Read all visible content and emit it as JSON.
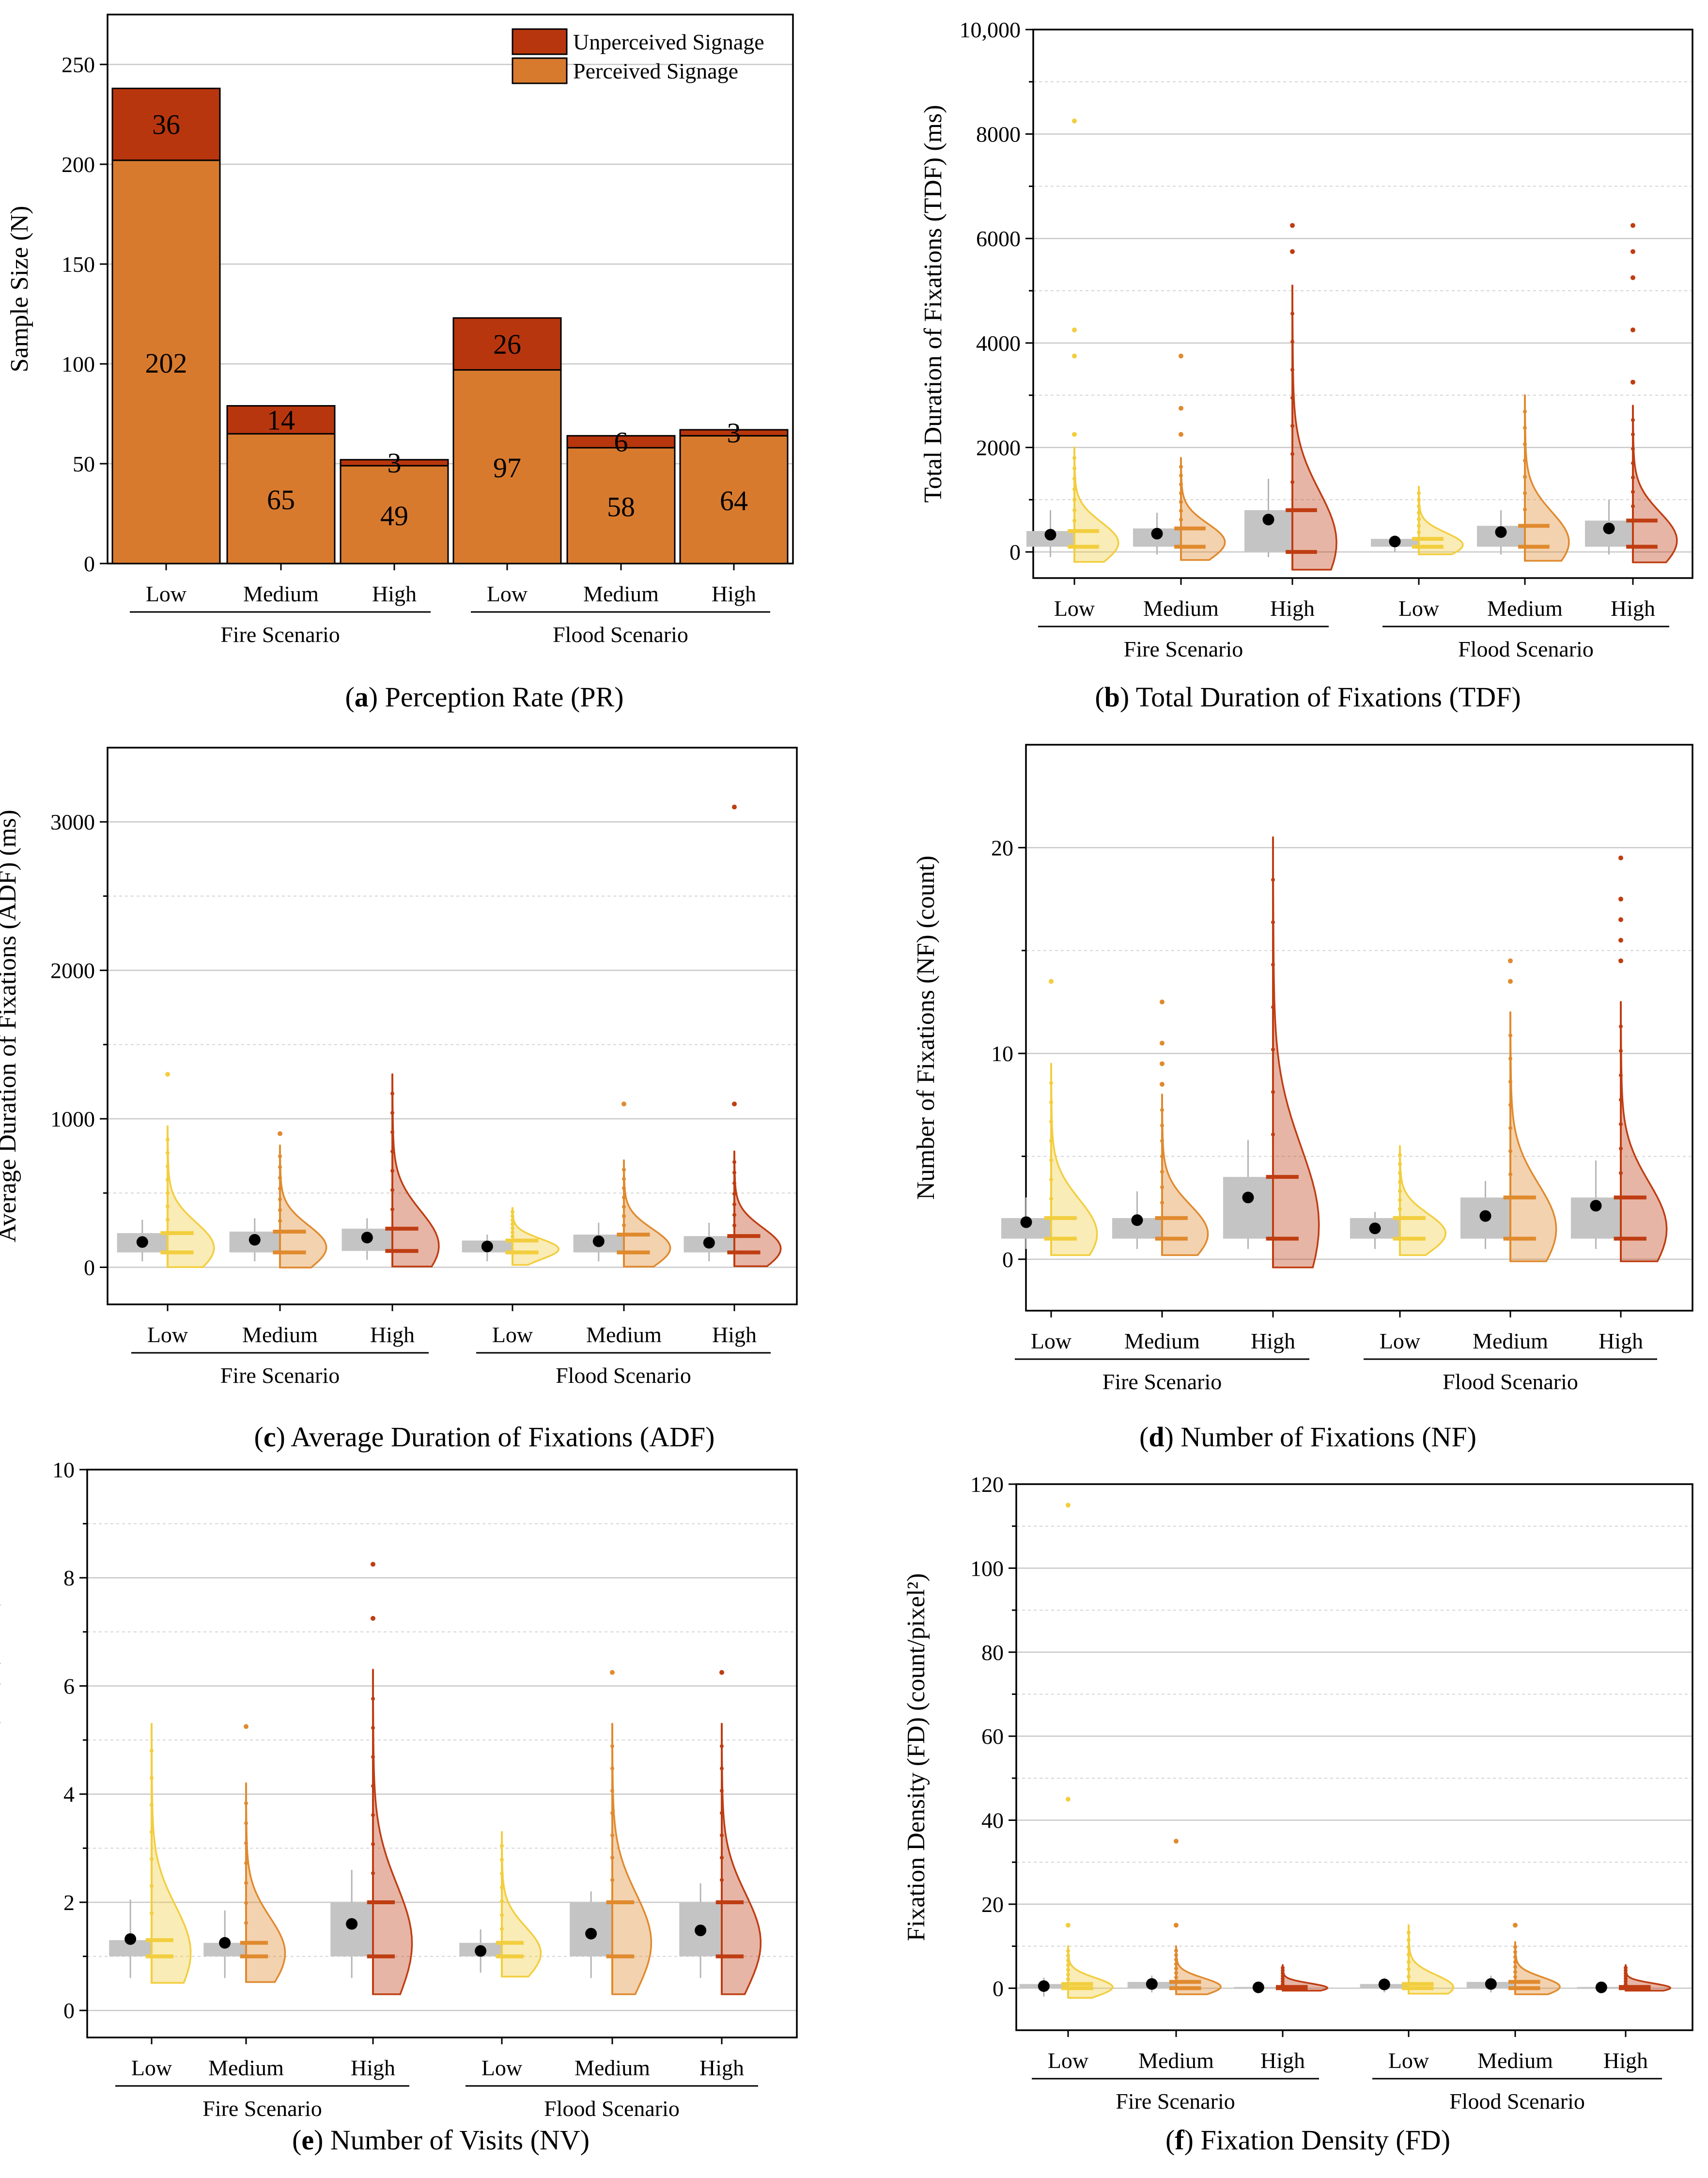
{
  "colors": {
    "perceived": "#D87A2E",
    "unperceived": "#B8360E",
    "low": "#F2CE3E",
    "medium": "#E08A2E",
    "high": "#BF3D12",
    "box": "#C4C4C4",
    "grid": "#C8C8C8"
  },
  "chart_data": [
    {
      "id": "a",
      "type": "bar",
      "caption_letter": "a",
      "caption_text": " Perception Rate (PR)",
      "ylabel": "Sample Size (N)",
      "ylim": [
        0,
        275
      ],
      "yticks": [
        0,
        50,
        100,
        150,
        200,
        250
      ],
      "ytick_labels": [
        "0",
        "50",
        "100",
        "150",
        "200",
        "250"
      ],
      "legend": [
        "Unperceived Signage",
        "Perceived Signage"
      ],
      "categories": [
        "Low",
        "Medium",
        "High",
        "Low",
        "Medium",
        "High"
      ],
      "groups": [
        "Fire Scenario",
        "Flood Scenario"
      ],
      "series": [
        {
          "name": "Perceived Signage",
          "values": [
            202,
            65,
            49,
            97,
            58,
            64
          ]
        },
        {
          "name": "Unperceived Signage",
          "values": [
            36,
            14,
            3,
            26,
            6,
            3
          ]
        }
      ]
    },
    {
      "id": "b",
      "type": "raincloud",
      "caption_letter": "b",
      "caption_text": " Total Duration of Fixations (TDF)",
      "ylabel": "Total Duration of Fixations (TDF) (ms)",
      "ylim": [
        -500,
        10000
      ],
      "yticks": [
        0,
        2000,
        4000,
        6000,
        8000,
        10000
      ],
      "ytick_labels": [
        "0",
        "2000",
        "4000",
        "6000",
        "8000",
        "10,000"
      ],
      "minor_step": 1000,
      "categories": [
        "Low",
        "Medium",
        "High",
        "Low",
        "Medium",
        "High"
      ],
      "groups": [
        "Fire Scenario",
        "Flood Scenario"
      ],
      "series": [
        {
          "q1": 100,
          "q3": 400,
          "whisker_low": -100,
          "whisker_high": 800,
          "mean": 330,
          "violin_max": 2000,
          "outliers": [
            2250,
            3750,
            4250,
            8250
          ]
        },
        {
          "q1": 100,
          "q3": 450,
          "whisker_low": -50,
          "whisker_high": 750,
          "mean": 350,
          "violin_max": 1800,
          "outliers": [
            2250,
            2750,
            3750
          ]
        },
        {
          "q1": 0,
          "q3": 800,
          "whisker_low": -100,
          "whisker_high": 1400,
          "mean": 620,
          "violin_max": 5100,
          "outliers": [
            5750,
            6250
          ]
        },
        {
          "q1": 100,
          "q3": 250,
          "whisker_low": 0,
          "whisker_high": 300,
          "mean": 200,
          "violin_max": 1250,
          "outliers": []
        },
        {
          "q1": 100,
          "q3": 500,
          "whisker_low": -50,
          "whisker_high": 800,
          "mean": 380,
          "violin_max": 3000,
          "outliers": []
        },
        {
          "q1": 100,
          "q3": 600,
          "whisker_low": -50,
          "whisker_high": 1000,
          "mean": 450,
          "violin_max": 2800,
          "outliers": [
            3250,
            4250,
            5250,
            5750,
            6250
          ]
        }
      ]
    },
    {
      "id": "c",
      "type": "raincloud",
      "caption_letter": "c",
      "caption_text": " Average Duration of Fixations (ADF)",
      "ylabel": "Average Duration of Fixations (ADF) (ms)",
      "ylim": [
        -250,
        3500
      ],
      "yticks": [
        0,
        1000,
        2000,
        3000
      ],
      "ytick_labels": [
        "0",
        "1000",
        "2000",
        "3000"
      ],
      "minor_step": 500,
      "categories": [
        "Low",
        "Medium",
        "High",
        "Low",
        "Medium",
        "High"
      ],
      "groups": [
        "Fire Scenario",
        "Flood Scenario"
      ],
      "series": [
        {
          "q1": 100,
          "q3": 230,
          "whisker_low": 40,
          "whisker_high": 320,
          "mean": 170,
          "violin_max": 950,
          "outliers": [
            1300
          ]
        },
        {
          "q1": 100,
          "q3": 240,
          "whisker_low": 40,
          "whisker_high": 330,
          "mean": 185,
          "violin_max": 820,
          "outliers": [
            900
          ]
        },
        {
          "q1": 110,
          "q3": 260,
          "whisker_low": 50,
          "whisker_high": 330,
          "mean": 200,
          "violin_max": 1300,
          "outliers": []
        },
        {
          "q1": 100,
          "q3": 180,
          "whisker_low": 40,
          "whisker_high": 220,
          "mean": 140,
          "violin_max": 400,
          "outliers": []
        },
        {
          "q1": 100,
          "q3": 220,
          "whisker_low": 40,
          "whisker_high": 300,
          "mean": 175,
          "violin_max": 720,
          "outliers": [
            1100
          ]
        },
        {
          "q1": 100,
          "q3": 210,
          "whisker_low": 40,
          "whisker_high": 300,
          "mean": 165,
          "violin_max": 780,
          "outliers": [
            1100,
            3100
          ]
        }
      ]
    },
    {
      "id": "d",
      "type": "raincloud",
      "caption_letter": "d",
      "caption_text": " Number of Fixations (NF)",
      "ylabel": "Number of Fixations (NF) (count)",
      "ylim": [
        -2.5,
        25
      ],
      "yticks": [
        0,
        10,
        20
      ],
      "ytick_labels": [
        "0",
        "10",
        "20"
      ],
      "minor_step": 5,
      "categories": [
        "Low",
        "Medium",
        "High",
        "Low",
        "Medium",
        "High"
      ],
      "groups": [
        "Fire Scenario",
        "Flood Scenario"
      ],
      "series": [
        {
          "q1": 1,
          "q3": 2,
          "whisker_low": 0.5,
          "whisker_high": 3,
          "mean": 1.8,
          "violin_max": 9.5,
          "outliers": [
            13.5
          ]
        },
        {
          "q1": 1,
          "q3": 2,
          "whisker_low": 0.5,
          "whisker_high": 3.3,
          "mean": 1.9,
          "violin_max": 8,
          "outliers": [
            8.5,
            9.5,
            10.5,
            12.5
          ]
        },
        {
          "q1": 1,
          "q3": 4,
          "whisker_low": 0.5,
          "whisker_high": 5.8,
          "mean": 3.0,
          "violin_max": 20.5,
          "outliers": []
        },
        {
          "q1": 1,
          "q3": 2,
          "whisker_low": 0.5,
          "whisker_high": 2.3,
          "mean": 1.5,
          "violin_max": 5.5,
          "outliers": []
        },
        {
          "q1": 1,
          "q3": 3,
          "whisker_low": 0.5,
          "whisker_high": 3.8,
          "mean": 2.1,
          "violin_max": 12,
          "outliers": [
            13.5,
            14.5
          ]
        },
        {
          "q1": 1,
          "q3": 3,
          "whisker_low": 0.5,
          "whisker_high": 4.8,
          "mean": 2.6,
          "violin_max": 12.5,
          "outliers": [
            14.5,
            15.5,
            16.5,
            17.5,
            19.5
          ]
        }
      ]
    },
    {
      "id": "e",
      "type": "raincloud",
      "caption_letter": "e",
      "caption_text": " Number of Visits (NV)",
      "ylabel": "Number of Visits (NV) (count)",
      "ylim": [
        -0.5,
        10
      ],
      "yticks": [
        0,
        2,
        4,
        6,
        8,
        10
      ],
      "ytick_labels": [
        "0",
        "2",
        "4",
        "6",
        "8",
        "10"
      ],
      "minor_step": 1,
      "categories": [
        "Low",
        "Medium",
        "High",
        "Low",
        "Medium",
        "High"
      ],
      "groups": [
        "Fire Scenario",
        "Flood Scenario"
      ],
      "series": [
        {
          "q1": 1,
          "q3": 1.3,
          "whisker_low": 0.6,
          "whisker_high": 2.05,
          "mean": 1.32,
          "violin_max": 5.3,
          "outliers": []
        },
        {
          "q1": 1,
          "q3": 1.25,
          "whisker_low": 0.6,
          "whisker_high": 1.85,
          "mean": 1.25,
          "violin_max": 4.2,
          "outliers": [
            5.25
          ]
        },
        {
          "q1": 1,
          "q3": 2,
          "whisker_low": 0.6,
          "whisker_high": 2.6,
          "mean": 1.6,
          "violin_max": 6.3,
          "outliers": [
            7.25,
            8.25
          ]
        },
        {
          "q1": 1,
          "q3": 1.25,
          "whisker_low": 0.7,
          "whisker_high": 1.5,
          "mean": 1.1,
          "violin_max": 3.3,
          "outliers": []
        },
        {
          "q1": 1,
          "q3": 2,
          "whisker_low": 0.6,
          "whisker_high": 2.2,
          "mean": 1.42,
          "violin_max": 5.3,
          "outliers": [
            6.25
          ]
        },
        {
          "q1": 1,
          "q3": 2,
          "whisker_low": 0.6,
          "whisker_high": 2.35,
          "mean": 1.48,
          "violin_max": 5.3,
          "outliers": [
            6.25
          ]
        }
      ]
    },
    {
      "id": "f",
      "type": "raincloud",
      "caption_letter": "f",
      "caption_text": " Fixation Density (FD)",
      "ylabel": "Fixation Density (FD) (count/pixel²)",
      "ylim": [
        -10,
        120
      ],
      "yticks": [
        0,
        20,
        40,
        60,
        80,
        100,
        120
      ],
      "ytick_labels": [
        "0",
        "20",
        "40",
        "60",
        "80",
        "100",
        "120"
      ],
      "minor_step": 10,
      "categories": [
        "Low",
        "Medium",
        "High",
        "Low",
        "Medium",
        "High"
      ],
      "groups": [
        "Fire Scenario",
        "Flood Scenario"
      ],
      "series": [
        {
          "q1": 0,
          "q3": 1,
          "whisker_low": -2,
          "whisker_high": 2.5,
          "mean": 0.5,
          "violin_max": 10,
          "outliers": [
            15,
            45,
            115
          ]
        },
        {
          "q1": 0,
          "q3": 1.5,
          "whisker_low": -1,
          "whisker_high": 3,
          "mean": 1.0,
          "violin_max": 10,
          "outliers": [
            15,
            35
          ]
        },
        {
          "q1": 0,
          "q3": 0.3,
          "whisker_low": -0.5,
          "whisker_high": 0.6,
          "mean": 0.2,
          "violin_max": 5.5,
          "outliers": []
        },
        {
          "q1": 0,
          "q3": 1,
          "whisker_low": -1,
          "whisker_high": 2.5,
          "mean": 0.9,
          "violin_max": 15,
          "outliers": []
        },
        {
          "q1": 0,
          "q3": 1.5,
          "whisker_low": -1,
          "whisker_high": 3,
          "mean": 1.0,
          "violin_max": 11,
          "outliers": [
            15
          ]
        },
        {
          "q1": 0,
          "q3": 0.3,
          "whisker_low": -0.5,
          "whisker_high": 0.6,
          "mean": 0.2,
          "violin_max": 5.5,
          "outliers": []
        }
      ]
    }
  ]
}
